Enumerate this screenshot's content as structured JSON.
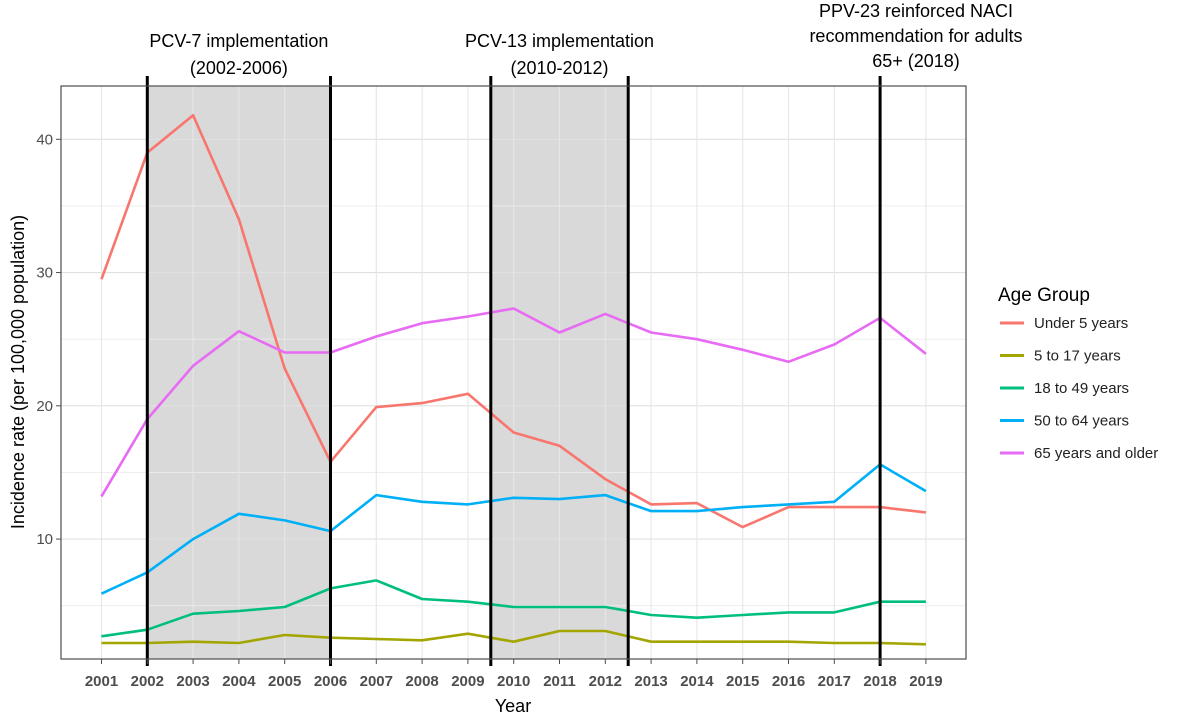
{
  "chart_data": {
    "type": "line",
    "title": "",
    "xlabel": "Year",
    "ylabel": "Incidence rate (per 100,000 population)",
    "x": [
      "2001",
      "2002",
      "2003",
      "2004",
      "2005",
      "2006",
      "2007",
      "2008",
      "2009",
      "2010",
      "2011",
      "2012",
      "2013",
      "2014",
      "2015",
      "2016",
      "2017",
      "2018",
      "2019"
    ],
    "ylim": [
      1,
      44
    ],
    "yticks": [
      10,
      20,
      30,
      40
    ],
    "grid": true,
    "legend": {
      "title": "Age Group",
      "position": "right"
    },
    "series": [
      {
        "name": "Under 5 years",
        "color": "#F8766D",
        "values": [
          29.5,
          39.0,
          41.8,
          34.0,
          22.8,
          15.8,
          19.9,
          20.2,
          20.9,
          18.0,
          17.0,
          14.5,
          12.6,
          12.7,
          10.9,
          12.4,
          12.4,
          12.4,
          12.0
        ]
      },
      {
        "name": "5 to 17 years",
        "color": "#A3A500",
        "values": [
          2.2,
          2.2,
          2.3,
          2.2,
          2.8,
          2.6,
          2.5,
          2.4,
          2.9,
          2.3,
          3.1,
          3.1,
          2.3,
          2.3,
          2.3,
          2.3,
          2.2,
          2.2,
          2.1
        ]
      },
      {
        "name": "18 to 49 years",
        "color": "#00BF7D",
        "values": [
          2.7,
          3.2,
          4.4,
          4.6,
          4.9,
          6.3,
          6.9,
          5.5,
          5.3,
          4.9,
          4.9,
          4.9,
          4.3,
          4.1,
          4.3,
          4.5,
          4.5,
          5.3,
          5.3
        ]
      },
      {
        "name": "50 to 64 years",
        "color": "#00B0F6",
        "values": [
          5.9,
          7.5,
          10.0,
          11.9,
          11.4,
          10.6,
          13.3,
          12.8,
          12.6,
          13.1,
          13.0,
          13.3,
          12.1,
          12.1,
          12.4,
          12.6,
          12.8,
          15.6,
          13.6
        ]
      },
      {
        "name": "65 years and older",
        "color": "#E76BF3",
        "values": [
          13.2,
          19.0,
          23.0,
          25.6,
          24.0,
          24.0,
          25.2,
          26.2,
          26.7,
          27.3,
          25.5,
          26.9,
          25.5,
          25.0,
          24.2,
          23.3,
          24.6,
          26.6,
          23.9
        ]
      }
    ],
    "shaded_periods": [
      {
        "start": "2002",
        "end": "2006",
        "label_lines": [
          "PCV-7 implementation",
          "(2002-2006)"
        ]
      },
      {
        "start": "2009.5",
        "end": "2012.5",
        "label_lines": [
          "PCV-13 implementation",
          "(2010-2012)"
        ]
      }
    ],
    "reference_lines": [
      {
        "x": "2018",
        "label_lines": [
          "PPV-23 reinforced NACI",
          "recommendation for adults",
          "65+ (2018)"
        ]
      }
    ]
  }
}
